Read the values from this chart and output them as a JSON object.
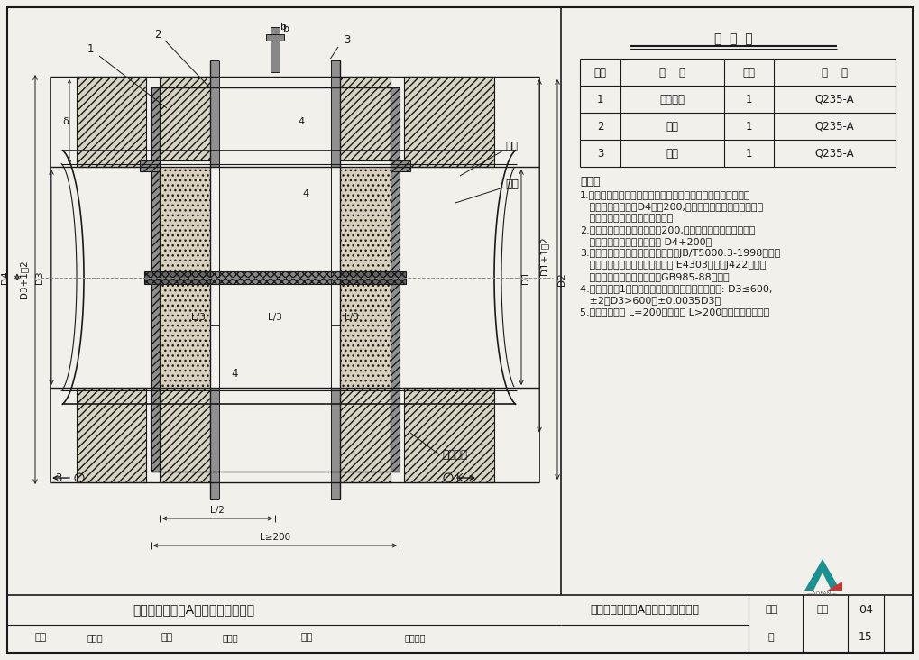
{
  "bg_color": "#f2f0eb",
  "line_color": "#1a1a1a",
  "title_block_title": "刚性防水套管（A型）安装图（一）",
  "page_num": "15",
  "drawing_num": "04",
  "mat_table_title": "材  料  表",
  "mat_headers": [
    "序号",
    "名    称",
    "数量",
    "材    料"
  ],
  "mat_rows": [
    [
      "1",
      "钢制套管",
      "1",
      "Q235-A"
    ],
    [
      "2",
      "翼环",
      "1",
      "Q235-A"
    ],
    [
      "3",
      "挡圈",
      "1",
      "Q235-A"
    ]
  ],
  "notes_title": "说明：",
  "notes": [
    "1.套管穿墙处如遇非混凝土墙壁时，应改用混凝土墙壁，其浇注",
    "   围应比翼环直径（D4）大200,而且必须将套管一次浇固于墙",
    "   内。套管内的填料应紧密捣实。",
    "2.穿管处混凝土墙厚应不小于200,否则应使墙壁一边或两边加",
    "   厚。加厚部分的直径至少为 D4+200。",
    "3.焊接结构尺寸公差与形位公差按照JB/T5000.3-1998执行。",
    "   焊接采用手工电弧焊，焊条型号 E4303，牌号J422。焊缝",
    "   坡口的基本形式与尺寸按照GB985-88执行。",
    "4.当套管（件1）采用卷制成型时，周长允许偏差为: D3≤600,",
    "   ±2，D3>600，±0.0035D3。",
    "5.套管的重量以 L=200计算，当 L>200时，应另行计算。"
  ]
}
